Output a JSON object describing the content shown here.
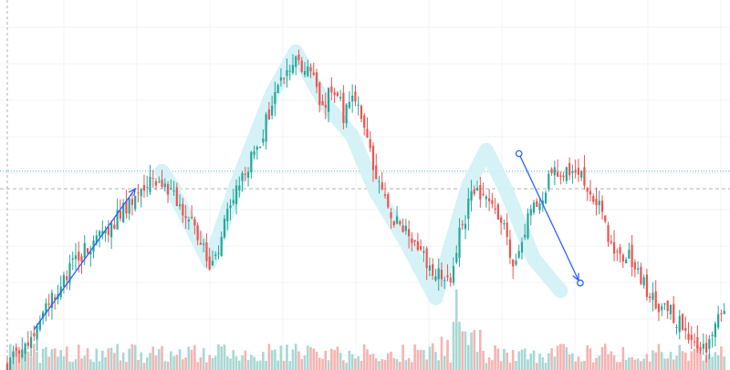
{
  "chart_data": {
    "type": "candlestick",
    "title": "",
    "xlabel": "",
    "ylabel": "",
    "grid": true,
    "legend": "none",
    "ylim": [
      0,
      100
    ],
    "volume_ylim": [
      0,
      100
    ],
    "colors": {
      "up": "#26a69a",
      "down": "#ef5350",
      "volume_up": "#a7d8d3",
      "volume_down": "#f6b3b1",
      "pattern_highlight": "#d3f1f6",
      "trend_arrow": "#2962ff",
      "grid": "#f0f3fa",
      "level_dotted": "#26a69a",
      "level_dashed": "#9e9e9e"
    },
    "anchors": [
      [
        0,
        0
      ],
      [
        10,
        12
      ],
      [
        22,
        30
      ],
      [
        36,
        42
      ],
      [
        47,
        52
      ],
      [
        52,
        52
      ],
      [
        58,
        47
      ],
      [
        64,
        38
      ],
      [
        68,
        30
      ],
      [
        71,
        35
      ],
      [
        77,
        52
      ],
      [
        84,
        62
      ],
      [
        90,
        78
      ],
      [
        97,
        87
      ],
      [
        101,
        85
      ],
      [
        106,
        75
      ],
      [
        110,
        80
      ],
      [
        113,
        72
      ],
      [
        118,
        77
      ],
      [
        123,
        58
      ],
      [
        128,
        45
      ],
      [
        134,
        38
      ],
      [
        140,
        31
      ],
      [
        145,
        27
      ],
      [
        149,
        25
      ],
      [
        152,
        38
      ],
      [
        156,
        49
      ],
      [
        161,
        51
      ],
      [
        166,
        43
      ],
      [
        170,
        28
      ],
      [
        175,
        43
      ],
      [
        181,
        50
      ],
      [
        183,
        56
      ],
      [
        189,
        56
      ],
      [
        193,
        54
      ],
      [
        199,
        46
      ],
      [
        204,
        33
      ],
      [
        210,
        31
      ],
      [
        213,
        25
      ],
      [
        219,
        18
      ],
      [
        224,
        15
      ],
      [
        229,
        9
      ],
      [
        235,
        5
      ],
      [
        241,
        17
      ]
    ],
    "seed": 7,
    "levels": [
      {
        "style": "dotted",
        "value": 56
      },
      {
        "style": "dashed",
        "value": 51
      }
    ],
    "pattern_overlay": [
      [
        56,
        51
      ],
      [
        52,
        56
      ],
      [
        59,
        45
      ],
      [
        68,
        30
      ],
      [
        77,
        52
      ],
      [
        89,
        78
      ],
      [
        97,
        90
      ],
      [
        107,
        75
      ],
      [
        116,
        66
      ],
      [
        124,
        50
      ],
      [
        134,
        36
      ],
      [
        144,
        20
      ],
      [
        155,
        52
      ],
      [
        161,
        62
      ],
      [
        168,
        50
      ],
      [
        177,
        31
      ],
      [
        186,
        22
      ]
    ],
    "trend_arrows": [
      {
        "from": [
          9,
          11
        ],
        "to": [
          43,
          51
        ],
        "end_markers": "arrowhead"
      },
      {
        "from": [
          172,
          61
        ],
        "to": [
          192,
          25
        ],
        "end_markers": "circle-and-arrowhead"
      }
    ]
  }
}
